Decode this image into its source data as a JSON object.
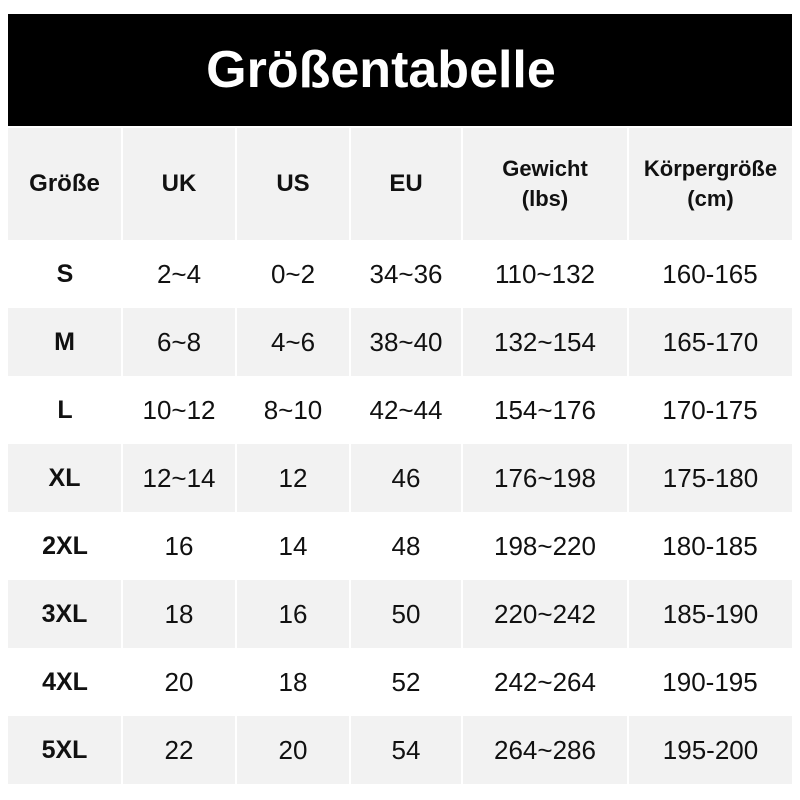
{
  "title": "Größentabelle",
  "headers": [
    "Größe",
    "UK",
    "US",
    "EU",
    "Gewicht\n(lbs)",
    "Körpergröße\n(cm)"
  ],
  "header_lines": {
    "weight": [
      "Gewicht",
      "(lbs)"
    ],
    "height": [
      "Körpergröße",
      "(cm)"
    ]
  },
  "rows": [
    [
      "S",
      "2~4",
      "0~2",
      "34~36",
      "110~132",
      "160-165"
    ],
    [
      "M",
      "6~8",
      "4~6",
      "38~40",
      "132~154",
      "165-170"
    ],
    [
      "L",
      "10~12",
      "8~10",
      "42~44",
      "154~176",
      "170-175"
    ],
    [
      "XL",
      "12~14",
      "12",
      "46",
      "176~198",
      "175-180"
    ],
    [
      "2XL",
      "16",
      "14",
      "48",
      "198~220",
      "180-185"
    ],
    [
      "3XL",
      "18",
      "16",
      "50",
      "220~242",
      "185-190"
    ],
    [
      "4XL",
      "20",
      "18",
      "52",
      "242~264",
      "190-195"
    ],
    [
      "5XL",
      "22",
      "20",
      "54",
      "264~286",
      "195-200"
    ]
  ],
  "colors": {
    "banner": "#000000",
    "stripe": "#f2f2f2"
  }
}
